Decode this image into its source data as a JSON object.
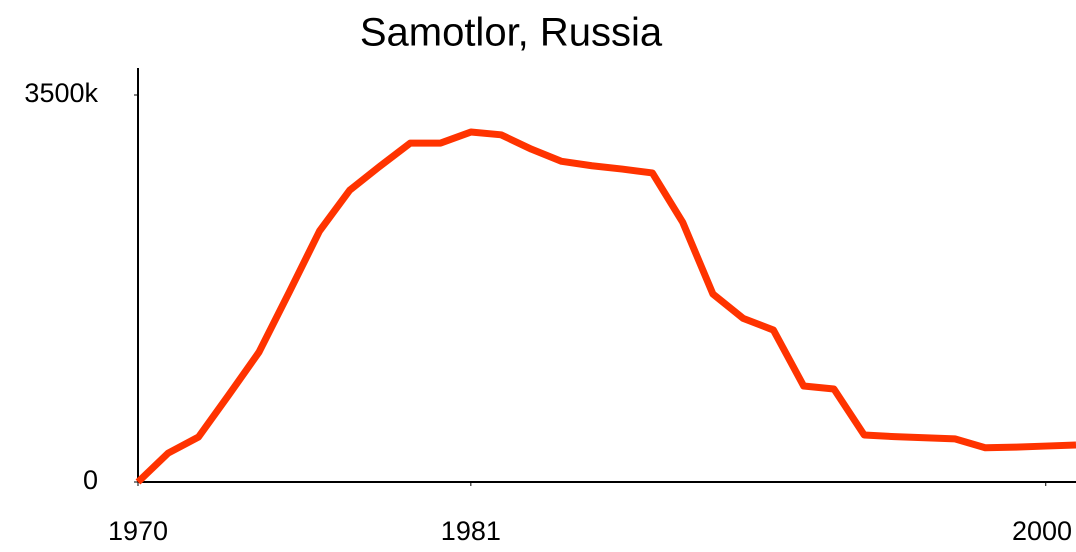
{
  "chart_data": {
    "type": "line",
    "title": "Samotlor, Russia",
    "x": [
      1970,
      1971,
      1972,
      1973,
      1974,
      1975,
      1976,
      1977,
      1978,
      1979,
      1980,
      1981,
      1982,
      1983,
      1984,
      1985,
      1986,
      1987,
      1988,
      1989,
      1990,
      1991,
      1992,
      1993,
      1994,
      1995,
      1996,
      1997,
      1998,
      1999,
      2000,
      2001
    ],
    "series": [
      {
        "name": "Samotlor",
        "color": "#ff3300",
        "values": [
          0,
          262,
          407,
          787,
          1175,
          1718,
          2270,
          2640,
          2857,
          3065,
          3065,
          3165,
          3140,
          3010,
          2900,
          2860,
          2830,
          2795,
          2350,
          1700,
          1480,
          1374,
          868,
          841,
          425,
          410,
          400,
          390,
          310,
          315,
          325,
          335
        ]
      }
    ],
    "xlim": [
      1970,
      2001
    ],
    "xticks": [
      1970,
      1981,
      2000
    ],
    "ylim": [
      0,
      3500
    ],
    "yticks": [
      0,
      {
        "value": 3500,
        "label": "3500k"
      }
    ]
  }
}
